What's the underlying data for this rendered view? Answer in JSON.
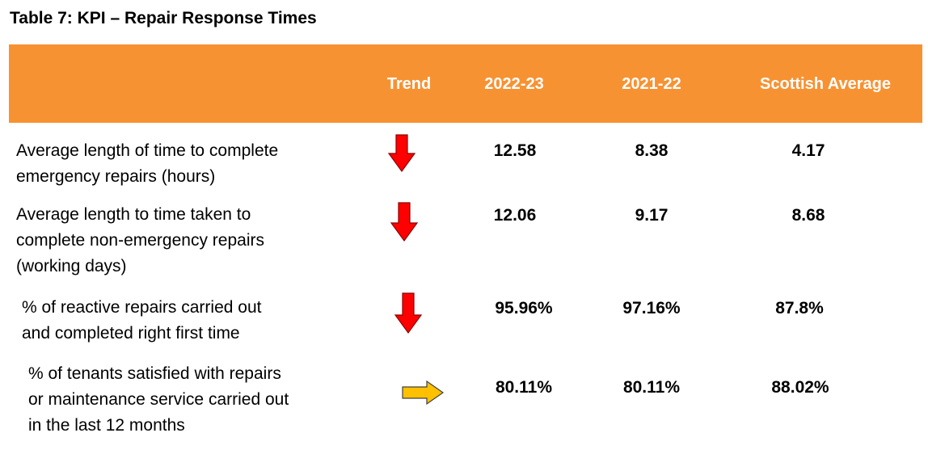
{
  "title": "Table 7: KPI – Repair Response Times",
  "headers": {
    "label": "",
    "trend": "Trend",
    "y2022": "2022-23",
    "y2021": "2021-22",
    "scottish": "Scottish Average"
  },
  "colors": {
    "header_bg": "#f79232",
    "arrow_down": "#ff0000",
    "arrow_right": "#ffc000"
  },
  "rows": [
    {
      "label_lines": [
        "Average length of time to complete",
        "emergency repairs (hours)"
      ],
      "trend": "down-arrow-icon",
      "y2022": "12.58",
      "y2021": "8.38",
      "scottish": "4.17"
    },
    {
      "label_lines": [
        "Average length to time taken to",
        "complete non-emergency repairs",
        "(working days)"
      ],
      "trend": "down-arrow-icon",
      "y2022": "12.06",
      "y2021": "9.17",
      "scottish": "8.68"
    },
    {
      "label_lines": [
        "% of reactive repairs carried out",
        "and completed right first time"
      ],
      "trend": "down-arrow-icon",
      "y2022": "95.96%",
      "y2021": "97.16%",
      "scottish": "87.8%"
    },
    {
      "label_lines": [
        "% of tenants satisfied with repairs",
        "or maintenance service carried out",
        "in the last 12 months"
      ],
      "trend": "right-arrow-icon",
      "y2022": "80.11%",
      "y2021": "80.11%",
      "scottish": "88.02%"
    }
  ]
}
